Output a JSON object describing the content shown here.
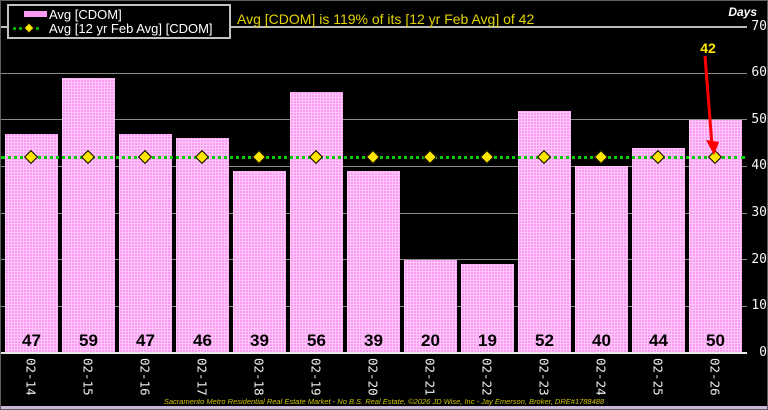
{
  "header": {
    "title": "Avg [CDOM] is 119% of its [12 yr Feb Avg] of 42",
    "axis_unit_label": "Days"
  },
  "legend": {
    "position": "top-left",
    "items": [
      {
        "label": "Avg [CDOM]",
        "swatch": "pink-bar-swatch"
      },
      {
        "label": "Avg [12 yr Feb Avg] [CDOM]",
        "swatch": "green-dotted-line-yellow-diamond-swatch"
      }
    ]
  },
  "annotation": {
    "label": "42"
  },
  "footer": {
    "text": "Sacramento Metro Residential Real Estate Market - No B.S. Real Estate, ©2026 JD Wise, Inc - Jay Emerson, Broker, DRE#1788488"
  },
  "chart_data": {
    "type": "bar",
    "categories": [
      "02-14",
      "02-15",
      "02-16",
      "02-17",
      "02-18",
      "02-19",
      "02-20",
      "02-21",
      "02-22",
      "02-23",
      "02-24",
      "02-25",
      "02-26"
    ],
    "series": [
      {
        "name": "Avg [CDOM]",
        "type": "bar",
        "values": [
          47,
          59,
          47,
          46,
          39,
          56,
          39,
          20,
          19,
          52,
          40,
          44,
          50
        ]
      },
      {
        "name": "Avg [12 yr Feb Avg] [CDOM]",
        "type": "line",
        "value": 42,
        "marker": "yellow-diamond"
      }
    ],
    "title": "Avg [CDOM] is 119% of its [12 yr Feb Avg] of 42",
    "xlabel": "",
    "ylabel": "Days",
    "ylim": [
      0,
      70
    ],
    "yticks": [
      70,
      60,
      50,
      40,
      30,
      20,
      10,
      0
    ],
    "grid": true,
    "legend_position": "top-left",
    "annotation": {
      "text": "42",
      "target_category": "02-26",
      "target_value": 42
    },
    "colors": {
      "background": "#000000",
      "bar_fill": "#fa9af2",
      "bar_texture": "#fec9fa",
      "bar_value_text": "#000000",
      "avg_line": "#00ce00",
      "marker_fill": "#ffe600",
      "title_text": "#e3d400",
      "annotation_text": "#ffe800",
      "annotation_arrow": "#ff0000",
      "gridline": "#8a8a8a",
      "axis_text": "#f5f5f5",
      "footer_text": "#cfc400"
    }
  }
}
